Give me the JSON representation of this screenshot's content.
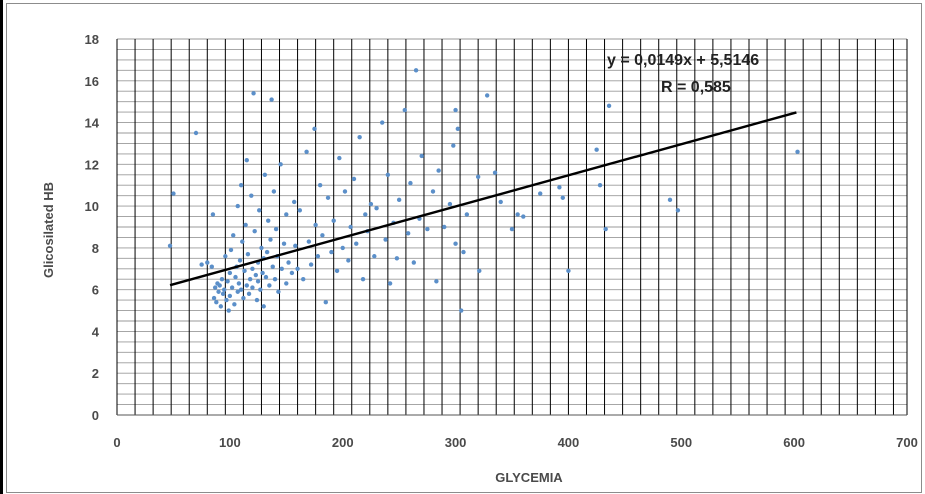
{
  "chart_data": {
    "type": "scatter",
    "xlabel": "GLYCEMIA",
    "ylabel": "Glicosilated  HB",
    "xlim": [
      0,
      700
    ],
    "ylim": [
      0,
      18
    ],
    "xticks": [
      0,
      100,
      200,
      300,
      400,
      500,
      600,
      700
    ],
    "yticks": [
      0,
      2,
      4,
      6,
      8,
      10,
      12,
      14,
      16,
      18
    ],
    "vertical_grid_step": 16,
    "horizontal_grid_step": 0.5,
    "point_color": "#5b8fc9",
    "trendline": {
      "equation_text": "y = 0,0149x + 5,5146",
      "r_text": "R = 0,585",
      "slope": 0.0149,
      "intercept": 5.5146,
      "x_range": [
        47,
        602
      ],
      "color": "#000000"
    },
    "series": [
      {
        "values": [
          [
            47,
            8.1
          ],
          [
            50,
            10.6
          ],
          [
            70,
            13.5
          ],
          [
            75,
            7.2
          ],
          [
            80,
            7.3
          ],
          [
            84,
            7.1
          ],
          [
            85,
            9.6
          ],
          [
            86,
            5.6
          ],
          [
            87,
            6.1
          ],
          [
            88,
            5.4
          ],
          [
            89,
            6.3
          ],
          [
            90,
            5.9
          ],
          [
            91,
            6.2
          ],
          [
            92,
            5.2
          ],
          [
            93,
            6.5
          ],
          [
            94,
            5.8
          ],
          [
            95,
            6.0
          ],
          [
            96,
            7.6
          ],
          [
            97,
            5.5
          ],
          [
            98,
            6.4
          ],
          [
            99,
            5.0
          ],
          [
            100,
            6.8
          ],
          [
            100,
            5.7
          ],
          [
            101,
            7.9
          ],
          [
            102,
            6.1
          ],
          [
            103,
            8.6
          ],
          [
            104,
            5.3
          ],
          [
            105,
            6.6
          ],
          [
            106,
            7.1
          ],
          [
            107,
            10.0
          ],
          [
            107,
            5.9
          ],
          [
            108,
            6.3
          ],
          [
            109,
            7.4
          ],
          [
            110,
            11.0
          ],
          [
            110,
            6.0
          ],
          [
            111,
            8.3
          ],
          [
            112,
            5.6
          ],
          [
            113,
            6.9
          ],
          [
            114,
            9.1
          ],
          [
            115,
            6.2
          ],
          [
            115,
            12.2
          ],
          [
            116,
            7.7
          ],
          [
            117,
            5.8
          ],
          [
            118,
            6.5
          ],
          [
            119,
            10.5
          ],
          [
            120,
            7.0
          ],
          [
            120,
            6.1
          ],
          [
            121,
            15.4
          ],
          [
            122,
            8.8
          ],
          [
            123,
            6.7
          ],
          [
            124,
            5.5
          ],
          [
            125,
            7.3
          ],
          [
            125,
            6.4
          ],
          [
            126,
            9.8
          ],
          [
            127,
            6.0
          ],
          [
            128,
            8.0
          ],
          [
            129,
            6.8
          ],
          [
            130,
            7.5
          ],
          [
            130,
            5.2
          ],
          [
            131,
            11.5
          ],
          [
            132,
            6.6
          ],
          [
            133,
            7.8
          ],
          [
            134,
            9.3
          ],
          [
            135,
            6.2
          ],
          [
            136,
            8.4
          ],
          [
            137,
            15.1
          ],
          [
            138,
            7.1
          ],
          [
            139,
            10.7
          ],
          [
            140,
            6.5
          ],
          [
            141,
            8.9
          ],
          [
            142,
            7.6
          ],
          [
            143,
            5.9
          ],
          [
            145,
            12.0
          ],
          [
            146,
            7.0
          ],
          [
            148,
            8.2
          ],
          [
            150,
            6.3
          ],
          [
            150,
            9.6
          ],
          [
            152,
            7.3
          ],
          [
            155,
            6.8
          ],
          [
            157,
            10.2
          ],
          [
            158,
            8.1
          ],
          [
            160,
            7.0
          ],
          [
            162,
            9.8
          ],
          [
            165,
            6.5
          ],
          [
            168,
            12.6
          ],
          [
            170,
            8.3
          ],
          [
            172,
            7.2
          ],
          [
            175,
            13.7
          ],
          [
            176,
            9.1
          ],
          [
            178,
            7.6
          ],
          [
            180,
            11.0
          ],
          [
            182,
            8.6
          ],
          [
            185,
            5.4
          ],
          [
            187,
            10.4
          ],
          [
            190,
            7.8
          ],
          [
            192,
            9.3
          ],
          [
            195,
            6.9
          ],
          [
            197,
            12.3
          ],
          [
            200,
            8.0
          ],
          [
            202,
            10.7
          ],
          [
            205,
            7.4
          ],
          [
            207,
            9.0
          ],
          [
            210,
            11.3
          ],
          [
            212,
            8.2
          ],
          [
            215,
            13.3
          ],
          [
            218,
            6.5
          ],
          [
            220,
            9.6
          ],
          [
            222,
            8.8
          ],
          [
            225,
            10.1
          ],
          [
            228,
            7.6
          ],
          [
            230,
            9.9
          ],
          [
            235,
            14.0
          ],
          [
            238,
            8.4
          ],
          [
            240,
            11.5
          ],
          [
            242,
            6.3
          ],
          [
            245,
            9.2
          ],
          [
            248,
            7.5
          ],
          [
            250,
            10.3
          ],
          [
            255,
            14.6
          ],
          [
            258,
            8.7
          ],
          [
            260,
            11.1
          ],
          [
            263,
            7.3
          ],
          [
            265,
            16.5
          ],
          [
            268,
            9.4
          ],
          [
            270,
            12.4
          ],
          [
            275,
            8.9
          ],
          [
            280,
            10.7
          ],
          [
            283,
            6.4
          ],
          [
            285,
            11.7
          ],
          [
            290,
            9.0
          ],
          [
            295,
            10.1
          ],
          [
            298,
            12.9
          ],
          [
            300,
            14.6
          ],
          [
            300,
            8.2
          ],
          [
            302,
            13.7
          ],
          [
            305,
            5.0
          ],
          [
            307,
            7.8
          ],
          [
            310,
            9.6
          ],
          [
            320,
            11.4
          ],
          [
            321,
            6.9
          ],
          [
            328,
            15.3
          ],
          [
            335,
            11.6
          ],
          [
            340,
            10.2
          ],
          [
            350,
            8.9
          ],
          [
            355,
            9.6
          ],
          [
            360,
            9.5
          ],
          [
            375,
            10.6
          ],
          [
            392,
            10.9
          ],
          [
            395,
            10.4
          ],
          [
            400,
            6.9
          ],
          [
            425,
            12.7
          ],
          [
            428,
            11.0
          ],
          [
            433,
            8.9
          ],
          [
            436,
            14.8
          ],
          [
            490,
            10.3
          ],
          [
            497,
            9.8
          ],
          [
            603,
            12.6
          ]
        ]
      }
    ]
  }
}
